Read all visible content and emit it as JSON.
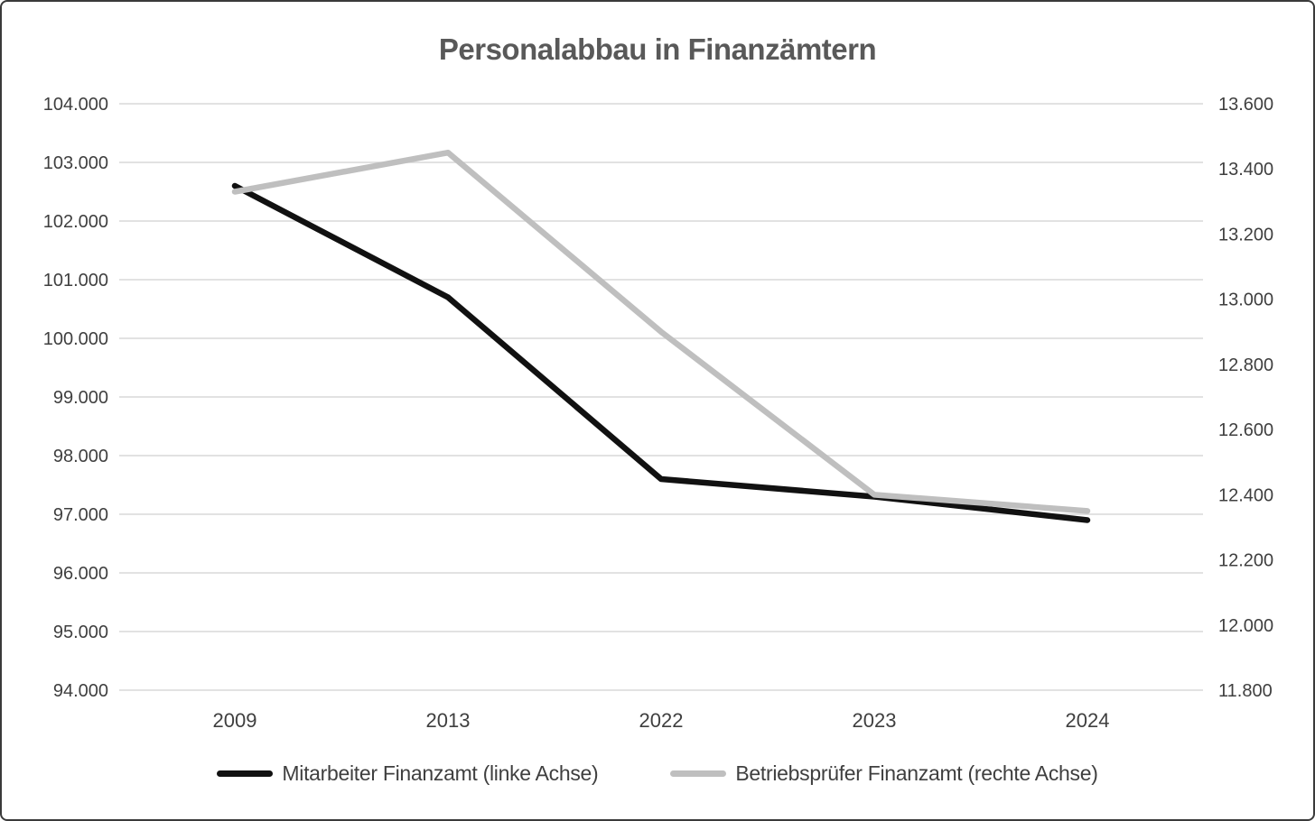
{
  "title": "Personalabbau in Finanzämtern",
  "colors": {
    "series_mitarbeiter": "#111111",
    "series_betriebspruefer": "#bfbfbf",
    "gridline": "#d9d9d9",
    "title_text": "#595959",
    "axis_text": "#3f3f3f",
    "frame_border": "#3a3a3a"
  },
  "chart_data": {
    "type": "line",
    "title": "Personalabbau in Finanzämtern",
    "categories": [
      "2009",
      "2013",
      "2022",
      "2023",
      "2024"
    ],
    "series": [
      {
        "name": "Mitarbeiter Finanzamt (linke Achse)",
        "axis": "left",
        "color": "#111111",
        "values": [
          102600,
          100700,
          97600,
          97300,
          96900
        ]
      },
      {
        "name": "Betriebsprüfer Finanzamt (rechte Achse)",
        "axis": "right",
        "color": "#bfbfbf",
        "values": [
          13330,
          13450,
          12900,
          12400,
          12350
        ]
      }
    ],
    "left_axis": {
      "min": 94000,
      "max": 104000,
      "step": 1000,
      "tick_labels": [
        "104.000",
        "103.000",
        "102.000",
        "101.000",
        "100.000",
        "99.000",
        "98.000",
        "97.000",
        "96.000",
        "95.000",
        "94.000"
      ]
    },
    "right_axis": {
      "min": 11800,
      "max": 13600,
      "step": 200,
      "tick_labels": [
        "13.600",
        "13.400",
        "13.200",
        "13.000",
        "12.800",
        "12.600",
        "12.400",
        "12.200",
        "12.000",
        "11.800"
      ]
    },
    "grid": true,
    "legend_position": "bottom"
  },
  "legend": {
    "items": [
      {
        "label": "Mitarbeiter Finanzamt (linke Achse)",
        "color": "#111111"
      },
      {
        "label": "Betriebsprüfer Finanzamt (rechte Achse)",
        "color": "#bfbfbf"
      }
    ]
  }
}
